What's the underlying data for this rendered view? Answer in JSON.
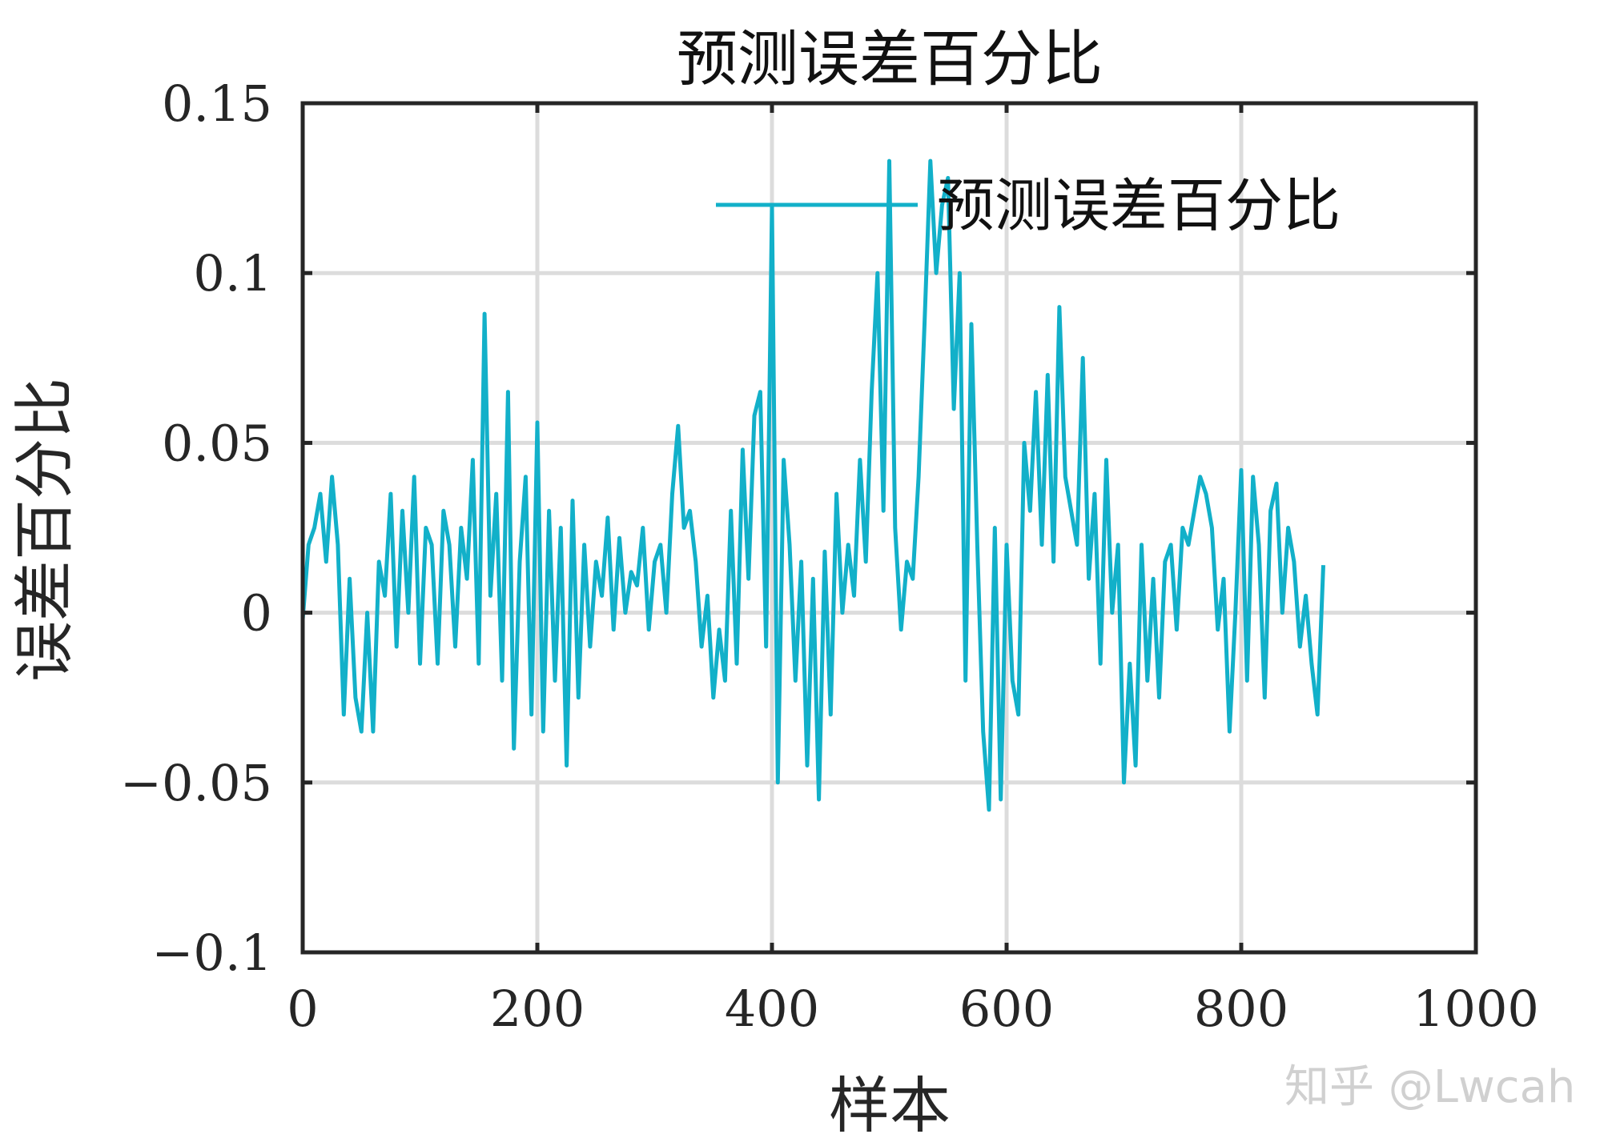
{
  "chart_data": {
    "type": "line",
    "title": "预测误差百分比",
    "xlabel": "样本",
    "ylabel": "误差百分比",
    "xlim": [
      0,
      1000
    ],
    "ylim": [
      -0.1,
      0.15
    ],
    "xticks": [
      "0",
      "200",
      "400",
      "600",
      "800",
      "1000"
    ],
    "xtick_values": [
      0,
      200,
      400,
      600,
      800,
      1000
    ],
    "yticks": [
      "−0.1",
      "−0.05",
      "0",
      "0.05",
      "0.1",
      "0.15"
    ],
    "ytick_values": [
      -0.1,
      -0.05,
      0,
      0.05,
      0.1,
      0.15
    ],
    "grid": true,
    "legend_position": "top-right",
    "series": [
      {
        "name": "预测误差百分比",
        "color": "#12b0c9",
        "x": [
          0,
          5,
          10,
          15,
          20,
          25,
          30,
          35,
          40,
          45,
          50,
          55,
          60,
          65,
          70,
          75,
          80,
          85,
          90,
          95,
          100,
          105,
          110,
          115,
          120,
          125,
          130,
          135,
          140,
          145,
          150,
          155,
          160,
          165,
          170,
          175,
          180,
          185,
          190,
          195,
          200,
          205,
          210,
          215,
          220,
          225,
          230,
          235,
          240,
          245,
          250,
          255,
          260,
          265,
          270,
          275,
          280,
          285,
          290,
          295,
          300,
          305,
          310,
          315,
          320,
          325,
          330,
          335,
          340,
          345,
          350,
          355,
          360,
          365,
          370,
          375,
          380,
          385,
          390,
          395,
          400,
          405,
          410,
          415,
          420,
          425,
          430,
          435,
          440,
          445,
          450,
          455,
          460,
          465,
          470,
          475,
          480,
          485,
          490,
          495,
          500,
          505,
          510,
          515,
          520,
          525,
          530,
          535,
          540,
          545,
          550,
          555,
          560,
          565,
          570,
          575,
          580,
          585,
          590,
          595,
          600,
          605,
          610,
          615,
          620,
          625,
          630,
          635,
          640,
          645,
          650,
          655,
          660,
          665,
          670,
          675,
          680,
          685,
          690,
          695,
          700,
          705,
          710,
          715,
          720,
          725,
          730,
          735,
          740,
          745,
          750,
          755,
          760,
          765,
          770,
          775,
          780,
          785,
          790,
          795,
          800,
          805,
          810,
          815,
          820,
          825,
          830,
          835,
          840,
          845,
          850,
          855,
          860,
          865,
          870
        ],
        "y": [
          -0.002,
          0.02,
          0.025,
          0.035,
          0.015,
          0.04,
          0.02,
          -0.03,
          0.01,
          -0.025,
          -0.035,
          0.0,
          -0.035,
          0.015,
          0.005,
          0.035,
          -0.01,
          0.03,
          0.0,
          0.04,
          -0.015,
          0.025,
          0.02,
          -0.015,
          0.03,
          0.02,
          -0.01,
          0.025,
          0.01,
          0.045,
          -0.015,
          0.088,
          0.005,
          0.035,
          -0.02,
          0.065,
          -0.04,
          0.015,
          0.04,
          -0.03,
          0.056,
          -0.035,
          0.03,
          -0.02,
          0.025,
          -0.045,
          0.033,
          -0.025,
          0.02,
          -0.01,
          0.015,
          0.005,
          0.028,
          -0.005,
          0.022,
          0.0,
          0.012,
          0.008,
          0.025,
          -0.005,
          0.015,
          0.02,
          0.0,
          0.035,
          0.055,
          0.025,
          0.03,
          0.015,
          -0.01,
          0.005,
          -0.025,
          -0.005,
          -0.02,
          0.03,
          -0.015,
          0.048,
          0.01,
          0.058,
          0.065,
          -0.01,
          0.12,
          -0.05,
          0.045,
          0.02,
          -0.02,
          0.015,
          -0.045,
          0.01,
          -0.055,
          0.018,
          -0.03,
          0.035,
          0.0,
          0.02,
          0.005,
          0.045,
          0.015,
          0.065,
          0.1,
          0.03,
          0.133,
          0.025,
          -0.005,
          0.015,
          0.01,
          0.04,
          0.085,
          0.133,
          0.1,
          0.12,
          0.128,
          0.06,
          0.1,
          -0.02,
          0.085,
          0.02,
          -0.035,
          -0.058,
          0.025,
          -0.055,
          0.02,
          -0.02,
          -0.03,
          0.05,
          0.03,
          0.065,
          0.02,
          0.07,
          0.015,
          0.09,
          0.04,
          0.03,
          0.02,
          0.075,
          0.01,
          0.035,
          -0.015,
          0.045,
          0.0,
          0.02,
          -0.05,
          -0.015,
          -0.045,
          0.02,
          -0.02,
          0.01,
          -0.025,
          0.015,
          0.02,
          -0.005,
          0.025,
          0.02,
          0.03,
          0.04,
          0.035,
          0.025,
          -0.005,
          0.01,
          -0.035,
          0.0,
          0.042,
          -0.02,
          0.04,
          0.02,
          -0.025,
          0.03,
          0.038,
          0.0,
          0.025,
          0.015,
          -0.01,
          0.005,
          -0.015,
          -0.03,
          0.014
        ]
      }
    ]
  },
  "watermark": "知乎 @Lwcah",
  "colors": {
    "axis": "#262626",
    "grid": "#dcdcdc",
    "series": "#12b0c9"
  }
}
